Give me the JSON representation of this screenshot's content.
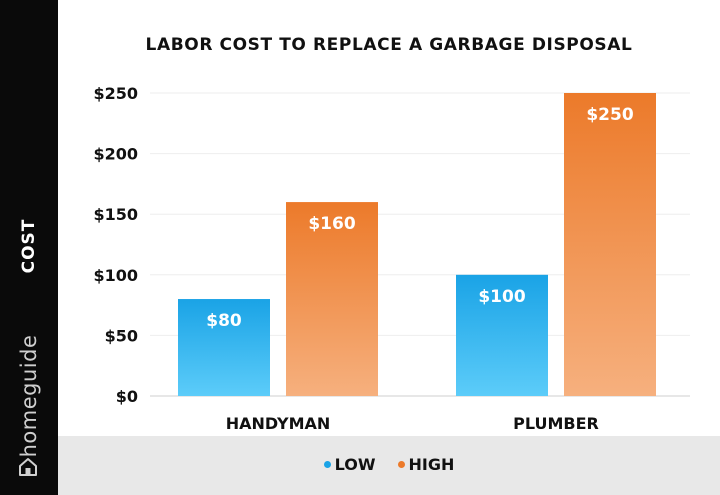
{
  "brand": {
    "name": "homeguide"
  },
  "colors": {
    "low_top": "#1aa3e6",
    "low_bottom": "#5cccf9",
    "high_top": "#ec7a2a",
    "high_bottom": "#f6b07e",
    "sidebar": "#0a0a0a",
    "legend_band": "#e8e8e8"
  },
  "chart_data": {
    "type": "bar",
    "title": "LABOR COST TO REPLACE A GARBAGE DISPOSAL",
    "xlabel": "",
    "ylabel": "COST",
    "categories": [
      "HANDYMAN",
      "PLUMBER"
    ],
    "series": [
      {
        "name": "LOW",
        "values": [
          80,
          100
        ],
        "labels": [
          "$80",
          "$100"
        ]
      },
      {
        "name": "HIGH",
        "values": [
          160,
          250
        ],
        "labels": [
          "$160",
          "$250"
        ]
      }
    ],
    "ylim": [
      0,
      250
    ],
    "yticks": [
      0,
      50,
      100,
      150,
      200,
      250
    ],
    "ytick_labels": [
      "$0",
      "$50",
      "$100",
      "$150",
      "$200",
      "$250"
    ],
    "grid": true,
    "legend_position": "bottom"
  }
}
